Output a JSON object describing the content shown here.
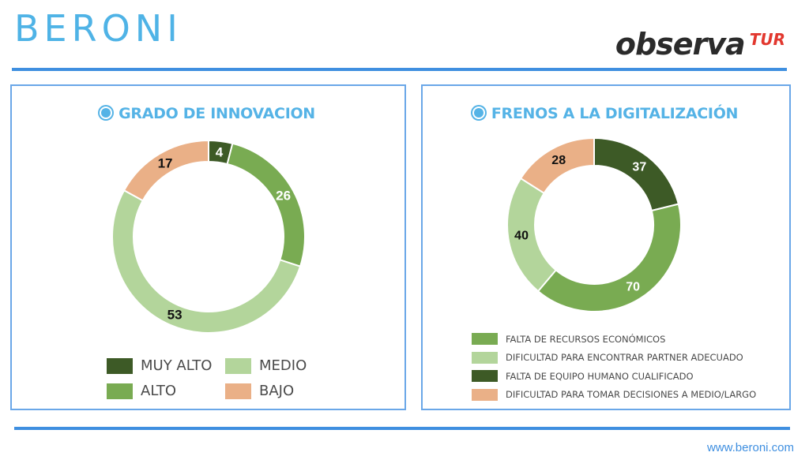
{
  "header": {
    "logo_left": "BERONI",
    "logo_right_main": "observa",
    "logo_right_suffix": "TUR"
  },
  "footer": {
    "url": "www.beroni.com"
  },
  "colors": {
    "brand_blue": "#3f8fe0",
    "title_blue": "#55b3e6",
    "muy_alto": "#3d5a26",
    "alto": "#79ab52",
    "medio": "#b3d59b",
    "bajo": "#eab087"
  },
  "chart_data": [
    {
      "type": "pie",
      "variant": "donut",
      "title": "GRADO DE INNOVACION",
      "categories": [
        "MUY ALTO",
        "ALTO",
        "MEDIO",
        "BAJO"
      ],
      "values": [
        4,
        26,
        53,
        17
      ],
      "data_labels": [
        "4",
        "26",
        "53",
        "17"
      ],
      "colors": [
        "#3d5a26",
        "#79ab52",
        "#b3d59b",
        "#eab087"
      ],
      "label_colors": [
        "#ffffff",
        "#ffffff",
        "#111111",
        "#111111"
      ],
      "legend": [
        {
          "label": "MUY ALTO",
          "color": "#3d5a26"
        },
        {
          "label": "MEDIO",
          "color": "#b3d59b"
        },
        {
          "label": "ALTO",
          "color": "#79ab52"
        },
        {
          "label": "BAJO",
          "color": "#eab087"
        }
      ],
      "legend_position": "bottom",
      "start": "top",
      "direction": "clockwise"
    },
    {
      "type": "pie",
      "variant": "donut",
      "title": "FRENOS A LA DIGITALIZACIÓN",
      "categories": [
        "FALTA DE EQUIPO HUMANO CUALIFICADO",
        "FALTA DE RECURSOS ECONÓMICOS",
        "DIFICULTAD PARA ENCONTRAR PARTNER ADECUADO",
        "DIFICULTAD PARA TOMAR DECISIONES A MEDIO/LARGO"
      ],
      "values": [
        37,
        70,
        40,
        28
      ],
      "data_labels": [
        "37",
        "70",
        "40",
        "28"
      ],
      "colors": [
        "#3d5a26",
        "#79ab52",
        "#b3d59b",
        "#eab087"
      ],
      "label_colors": [
        "#ffffff",
        "#ffffff",
        "#111111",
        "#111111"
      ],
      "legend": [
        {
          "label": "FALTA DE RECURSOS ECONÓMICOS",
          "color": "#79ab52"
        },
        {
          "label": "DIFICULTAD PARA ENCONTRAR PARTNER ADECUADO",
          "color": "#b3d59b"
        },
        {
          "label": "FALTA DE EQUIPO HUMANO CUALIFICADO",
          "color": "#3d5a26"
        },
        {
          "label": "DIFICULTAD PARA TOMAR DECISIONES A MEDIO/LARGO",
          "color": "#eab087"
        }
      ],
      "legend_position": "bottom",
      "start": "top",
      "direction": "clockwise"
    }
  ]
}
